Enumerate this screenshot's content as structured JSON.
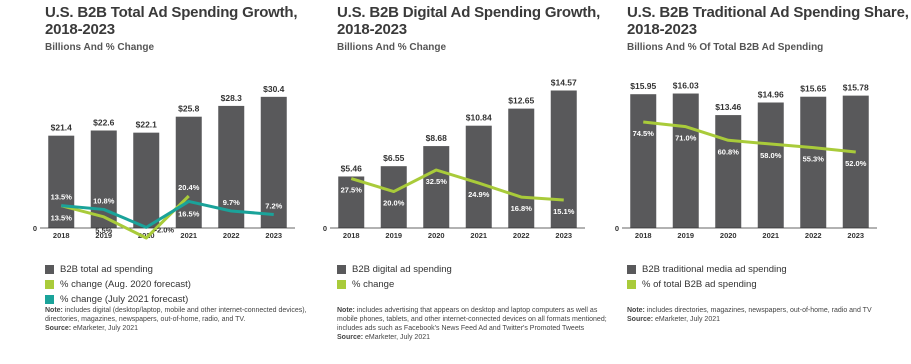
{
  "chart_data": [
    {
      "type": "bar",
      "title": "U.S. B2B Total Ad Spending Growth, 2018-2023",
      "subtitle": "Billions And % Change",
      "categories": [
        "2018",
        "2019",
        "2020",
        "2021",
        "2022",
        "2023"
      ],
      "series": [
        {
          "name": "B2B total ad spending",
          "color": "#59595b",
          "values": [
            21.4,
            22.6,
            22.1,
            25.8,
            28.3,
            30.4
          ],
          "value_labels": [
            "$21.4",
            "$22.6",
            "$22.1",
            "$25.8",
            "$28.3",
            "$30.4"
          ]
        },
        {
          "name": "% change (Aug. 2020 forecast)",
          "type": "line",
          "color": "#a9cb3a",
          "values": [
            13.5,
            5.5,
            -9.6,
            20.4,
            null,
            null
          ],
          "value_labels": [
            "13.5%",
            "5.5%",
            "-9.6%",
            "20.4%",
            null,
            null
          ]
        },
        {
          "name": "% change (July 2021 forecast)",
          "type": "line",
          "color": "#1aa39a",
          "values": [
            13.5,
            10.8,
            -2.0,
            16.5,
            9.7,
            7.2
          ],
          "value_labels": [
            "13.5%",
            "10.8%",
            "-2.0%",
            "16.5%",
            "9.7%",
            "7.2%"
          ]
        }
      ],
      "ylim": [
        0,
        35
      ],
      "yticks": [
        0
      ],
      "note_label": "Note:",
      "note": "includes digital (desktop/laptop, mobile and other internet-connected devices), directories, magazines, newspapers, out-of-home, radio, and TV.",
      "source_label": "Source:",
      "source": "eMarketer, July 2021"
    },
    {
      "type": "bar",
      "title": "U.S. B2B Digital Ad Spending Growth, 2018-2023",
      "subtitle": "Billions And % Change",
      "categories": [
        "2018",
        "2019",
        "2020",
        "2021",
        "2022",
        "2023"
      ],
      "series": [
        {
          "name": "B2B digital ad spending",
          "color": "#59595b",
          "values": [
            5.46,
            6.55,
            8.68,
            10.84,
            12.65,
            14.57
          ],
          "value_labels": [
            "$5.46",
            "$6.55",
            "$8.68",
            "$10.84",
            "$12.65",
            "$14.57"
          ]
        },
        {
          "name": "% change",
          "type": "line",
          "color": "#a9cb3a",
          "values": [
            27.5,
            20.0,
            32.5,
            24.9,
            16.8,
            15.1
          ],
          "value_labels": [
            "27.5%",
            "20.0%",
            "32.5%",
            "24.9%",
            "16.8%",
            "15.1%"
          ]
        }
      ],
      "ylim": [
        0,
        16
      ],
      "yticks": [
        0
      ],
      "note_label": "Note:",
      "note": "includes advertising that appears on desktop and laptop computers as well as mobile phones, tablets, and other internet-connected devices on all formats mentioned; includes ads such as Facebook's News Feed Ad and Twitter's Promoted Tweets",
      "source_label": "Source:",
      "source": "eMarketer, July 2021"
    },
    {
      "type": "bar",
      "title": "U.S. B2B Traditional Ad Spending Share, 2018-2023",
      "subtitle": "Billions And % Of Total B2B Ad Spending",
      "categories": [
        "2018",
        "2019",
        "2020",
        "2021",
        "2022",
        "2023"
      ],
      "series": [
        {
          "name": "B2B traditional media ad spending",
          "color": "#59595b",
          "values": [
            15.95,
            16.03,
            13.46,
            14.96,
            15.65,
            15.78
          ],
          "value_labels": [
            "$15.95",
            "$16.03",
            "$13.46",
            "$14.96",
            "$15.65",
            "$15.78"
          ]
        },
        {
          "name": "% of total B2B ad spending",
          "type": "line",
          "color": "#a9cb3a",
          "values": [
            74.5,
            71.0,
            60.8,
            58.0,
            55.3,
            52.0
          ],
          "value_labels": [
            "74.5%",
            "71.0%",
            "60.8%",
            "58.0%",
            "55.3%",
            "52.0%"
          ]
        }
      ],
      "ylim": [
        0,
        18
      ],
      "yticks": [
        0
      ],
      "note_label": "Note:",
      "note": "includes directories, magazines, newspapers, out-of-home, radio and TV",
      "source_label": "Source:",
      "source": "eMarketer, July 2021"
    }
  ]
}
